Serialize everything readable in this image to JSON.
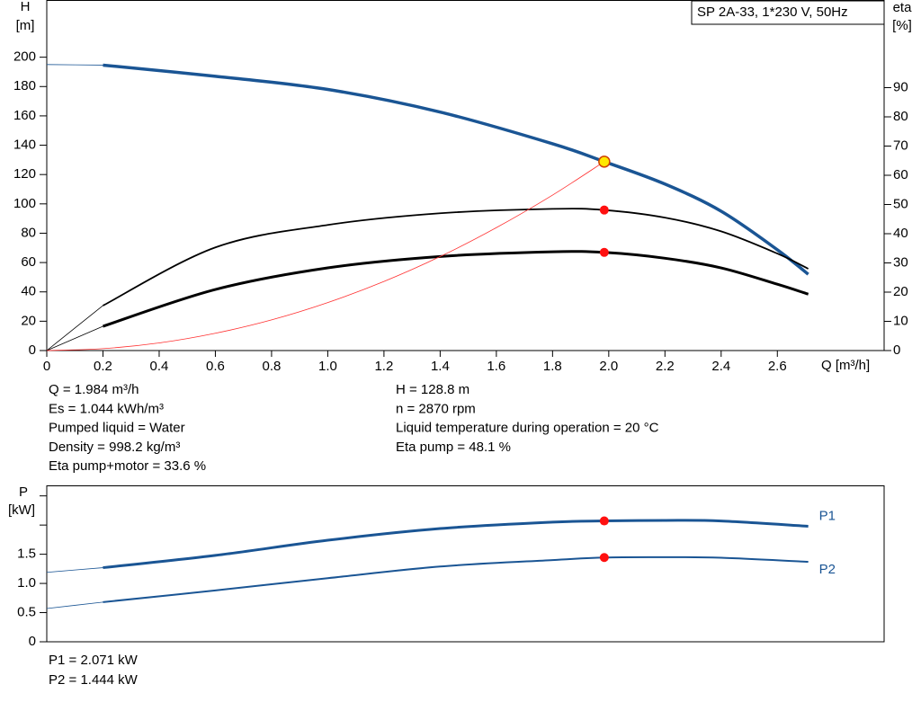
{
  "chart_data": [
    {
      "type": "line",
      "title": "SP 2A-33, 1*230 V, 50Hz",
      "ylabel": [
        "H",
        "[m]"
      ],
      "y2label": [
        "eta",
        "[%]"
      ],
      "xlabel": "Q [m³/h]",
      "xlim": [
        0,
        2.98
      ],
      "xticks": [
        0,
        0.2,
        0.4,
        0.6,
        0.8,
        {
          "value": 1,
          "label": "1.0"
        },
        1.2,
        1.4,
        1.6,
        1.8,
        {
          "value": 2,
          "label": "2.0"
        },
        2.2,
        2.4,
        2.6
      ],
      "ylim": [
        0,
        239
      ],
      "yticks": [
        0,
        20,
        40,
        60,
        80,
        100,
        120,
        140,
        160,
        180,
        200
      ],
      "y2lim": [
        0,
        120
      ],
      "y2ticks": [
        0,
        10,
        20,
        30,
        40,
        50,
        60,
        70,
        80,
        90
      ],
      "grid": false,
      "series": [
        {
          "color": "#1a5594",
          "width": 3.5,
          "thin_start": true,
          "x": [
            0,
            0.2,
            0.6,
            1.0,
            1.4,
            1.8,
            1.984,
            2.2,
            2.4,
            2.6,
            2.71
          ],
          "values": [
            195,
            194.6,
            187,
            178,
            162.6,
            141,
            128.8,
            113.5,
            95,
            68.7,
            52
          ]
        },
        {
          "color": "#000000",
          "width": 1.8,
          "thin_start": true,
          "axis": "y2",
          "x": [
            0,
            0.2,
            0.6,
            1.0,
            1.4,
            1.8,
            1.984,
            2.2,
            2.4,
            2.6,
            2.71
          ],
          "values": [
            0,
            15.4,
            35.3,
            43,
            47,
            48.5,
            48.1,
            45.5,
            40.8,
            33.2,
            28
          ]
        },
        {
          "color": "#000000",
          "width": 3,
          "thin_start": true,
          "axis": "y2",
          "x": [
            0,
            0.2,
            0.6,
            1.0,
            1.4,
            1.8,
            1.984,
            2.2,
            2.4,
            2.6,
            2.71
          ],
          "values": [
            0,
            8.3,
            20.9,
            28.3,
            32.2,
            33.8,
            33.6,
            31.6,
            28.3,
            22.7,
            19.3
          ]
        },
        {
          "color": "#ff3030",
          "width": 0.8,
          "x": [
            0,
            0.2,
            0.4,
            0.6,
            0.8,
            1.0,
            1.2,
            1.4,
            1.6,
            1.8,
            1.984
          ],
          "values": [
            0,
            1.3,
            5.2,
            11.8,
            20.9,
            32.7,
            47.1,
            64.1,
            83.8,
            106.0,
            128.8
          ]
        }
      ],
      "operating_points": [
        {
          "x": 1.984,
          "value": 128.8,
          "color": "#ffe800",
          "stroke": "#d04000",
          "size": 6
        },
        {
          "x": 1.984,
          "value": 48.1,
          "axis": "y2",
          "color": "#ff1010",
          "size": 5
        },
        {
          "x": 1.984,
          "value": 33.6,
          "axis": "y2",
          "color": "#ff1010",
          "size": 5
        }
      ],
      "info_left": [
        "Q = 1.984 m³/h",
        "Es = 1.044 kWh/m³",
        "Pumped liquid = Water",
        "Density = 998.2 kg/m³",
        "Eta pump+motor = 33.6 %"
      ],
      "info_right": [
        "H = 128.8 m",
        "n = 2870 rpm",
        "Liquid temperature during operation = 20 °C",
        "Eta pump = 48.1 %"
      ]
    },
    {
      "type": "line",
      "ylabel": [
        "P",
        "[kW]"
      ],
      "xlim": [
        0,
        2.98
      ],
      "ylim": [
        0,
        2.68
      ],
      "yticks": [
        0,
        0.5,
        {
          "value": 1,
          "label": "1.0"
        },
        1.5,
        {
          "value": 2,
          "label": null
        },
        {
          "value": 2.5,
          "label": null
        }
      ],
      "grid": false,
      "series": [
        {
          "name": "P1",
          "color": "#1a5594",
          "width": 3,
          "thin_start": true,
          "x": [
            0,
            0.2,
            0.6,
            1.0,
            1.4,
            1.8,
            1.984,
            2.2,
            2.4,
            2.71
          ],
          "values": [
            1.19,
            1.27,
            1.48,
            1.74,
            1.94,
            2.05,
            2.071,
            2.08,
            2.07,
            1.98
          ]
        },
        {
          "name": "P2",
          "color": "#1a5594",
          "width": 2,
          "thin_start": true,
          "x": [
            0,
            0.2,
            0.6,
            1.0,
            1.4,
            1.8,
            1.984,
            2.2,
            2.4,
            2.71
          ],
          "values": [
            0.57,
            0.68,
            0.88,
            1.09,
            1.29,
            1.4,
            1.444,
            1.45,
            1.44,
            1.37
          ]
        }
      ],
      "operating_points": [
        {
          "x": 1.984,
          "value": 2.071,
          "color": "#ff1010",
          "size": 5
        },
        {
          "x": 1.984,
          "value": 1.444,
          "color": "#ff1010",
          "size": 5
        }
      ],
      "info": [
        "P1 = 2.071 kW",
        "P2 = 1.444 kW"
      ]
    }
  ]
}
